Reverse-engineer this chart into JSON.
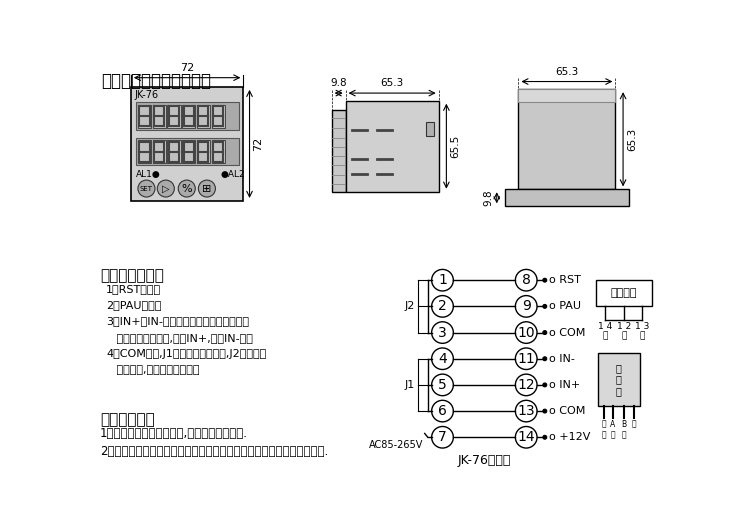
{
  "title": "四、外型尺寸及安装尺寸",
  "section5_title": "五、端子连接图",
  "section6_title": "六、注意事项",
  "notes": [
    "1、RST为复位",
    "2、PAU为暂停",
    "3、IN+、IN-为两个正反计数相位差输入端",
    "   单通道加减输入时,只接IN+,此时IN-浮空",
    "4、COM为地,J1为第一段报警输出,J2为第二段",
    "   报警输出,输出均为开关信号"
  ],
  "notice": [
    "1、信号输入导线不宜过长,用屏蔽线连接较好.",
    "2、仪表避免在有腐蚀性易燃物质灰尘大振动强和强干扰源的环境里工作."
  ],
  "bg_color": "#ffffff",
  "box_color": "#c0c0c0",
  "text_color": "#000000",
  "dim_color": "#000000",
  "line_color": "#000000",
  "circle_color": "#ffffff",
  "jk76_caption": "JK-76接线图",
  "dim72": "72",
  "dim72v": "72",
  "dim98": "9.8",
  "dim653a": "65.3",
  "dim655": "65.5",
  "dim653b": "65.3",
  "dim653c": "65.3",
  "dim98b": "9.8"
}
